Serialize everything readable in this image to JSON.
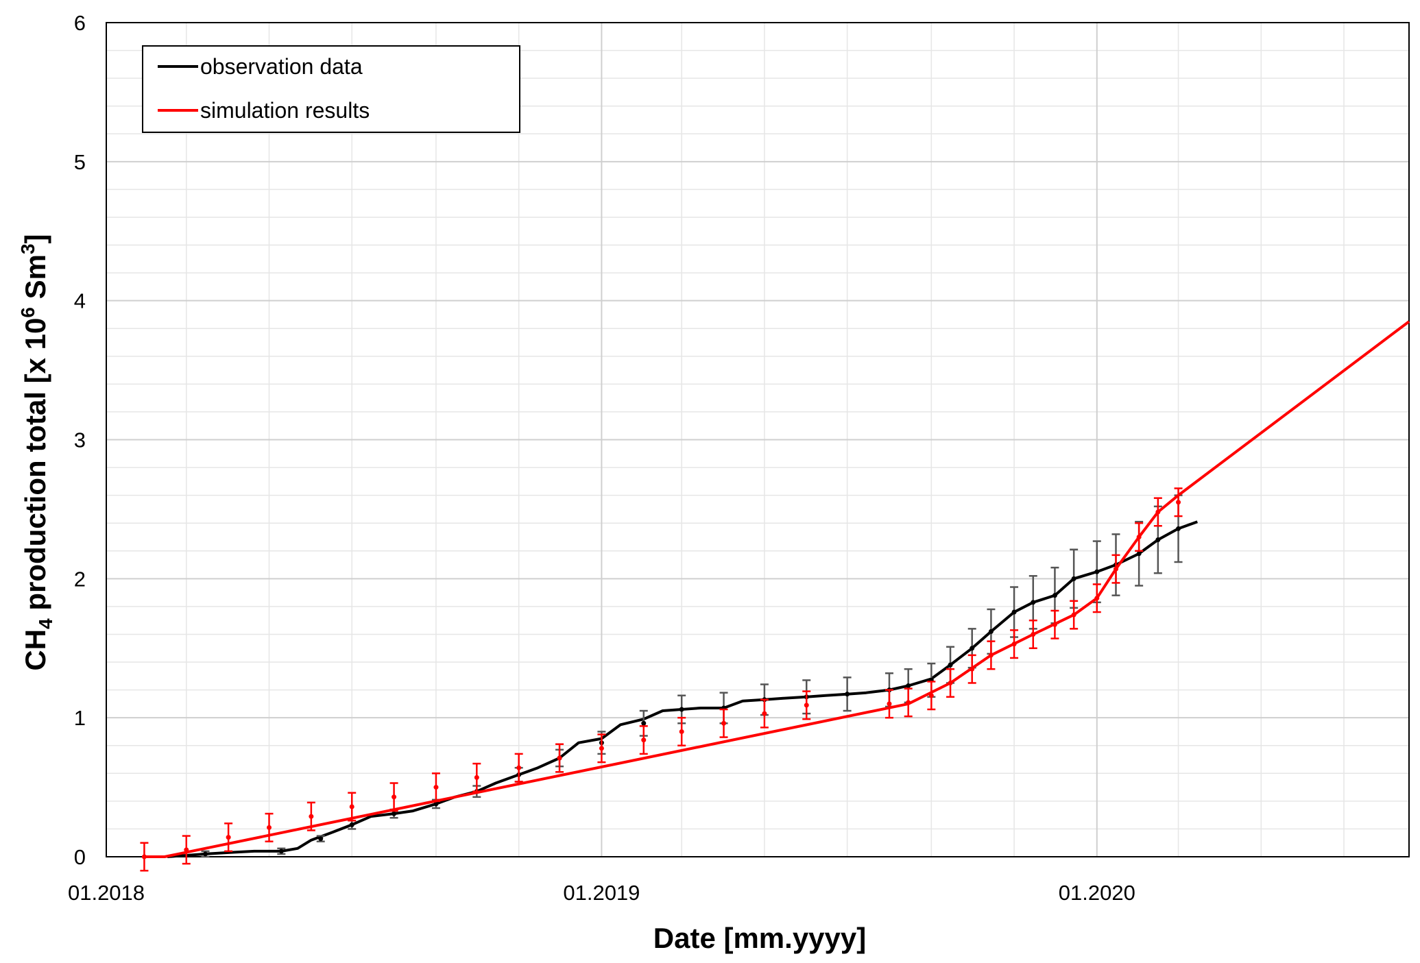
{
  "chart_data": {
    "type": "line",
    "xlabel": "Date [mm.yyyy]",
    "ylabel": {
      "pre": "CH",
      "sub": "4",
      "mid": " production total [x 10",
      "sup1": "6",
      "mid2": " Sm",
      "sup2": "3",
      "post": "]"
    },
    "xlim": [
      "2018-01-01",
      "2020-08-18"
    ],
    "ylim": [
      0,
      6
    ],
    "x_ticks": [
      {
        "date": "2018-01-01",
        "label": "01.2018"
      },
      {
        "date": "2019-01-01",
        "label": "01.2019"
      },
      {
        "date": "2020-01-01",
        "label": "01.2020"
      }
    ],
    "y_ticks": [
      0,
      1,
      2,
      3,
      4,
      5,
      6
    ],
    "grid": true,
    "legend_position": "top-left",
    "series": [
      {
        "name": "observation data",
        "color": "#000000",
        "error_color": "#555555",
        "points": [
          [
            "2018-02-15",
            0.0
          ],
          [
            "2018-03-01",
            0.01
          ],
          [
            "2018-03-15",
            0.02
          ],
          [
            "2018-04-01",
            0.03
          ],
          [
            "2018-04-20",
            0.04
          ],
          [
            "2018-05-10",
            0.04
          ],
          [
            "2018-05-22",
            0.06
          ],
          [
            "2018-06-01",
            0.12
          ],
          [
            "2018-06-15",
            0.17
          ],
          [
            "2018-07-01",
            0.23
          ],
          [
            "2018-07-15",
            0.29
          ],
          [
            "2018-08-01",
            0.31
          ],
          [
            "2018-08-15",
            0.33
          ],
          [
            "2018-09-01",
            0.38
          ],
          [
            "2018-09-15",
            0.43
          ],
          [
            "2018-10-01",
            0.47
          ],
          [
            "2018-10-15",
            0.53
          ],
          [
            "2018-11-01",
            0.59
          ],
          [
            "2018-11-15",
            0.64
          ],
          [
            "2018-12-01",
            0.71
          ],
          [
            "2018-12-15",
            0.82
          ],
          [
            "2019-01-01",
            0.85
          ],
          [
            "2019-01-15",
            0.95
          ],
          [
            "2019-02-01",
            0.99
          ],
          [
            "2019-02-15",
            1.05
          ],
          [
            "2019-03-01",
            1.06
          ],
          [
            "2019-03-15",
            1.07
          ],
          [
            "2019-04-01",
            1.07
          ],
          [
            "2019-04-15",
            1.12
          ],
          [
            "2019-05-01",
            1.13
          ],
          [
            "2019-05-15",
            1.14
          ],
          [
            "2019-06-01",
            1.15
          ],
          [
            "2019-06-15",
            1.16
          ],
          [
            "2019-07-01",
            1.17
          ],
          [
            "2019-07-15",
            1.18
          ],
          [
            "2019-08-01",
            1.2
          ],
          [
            "2019-08-15",
            1.23
          ],
          [
            "2019-09-01",
            1.28
          ],
          [
            "2019-09-15",
            1.38
          ],
          [
            "2019-10-01",
            1.5
          ],
          [
            "2019-10-15",
            1.62
          ],
          [
            "2019-11-01",
            1.76
          ],
          [
            "2019-11-15",
            1.83
          ],
          [
            "2019-12-01",
            1.88
          ],
          [
            "2019-12-15",
            2.0
          ],
          [
            "2020-01-01",
            2.05
          ],
          [
            "2020-01-15",
            2.1
          ],
          [
            "2020-02-01",
            2.18
          ],
          [
            "2020-02-15",
            2.28
          ],
          [
            "2020-03-01",
            2.36
          ],
          [
            "2020-03-15",
            2.41
          ]
        ],
        "error_bars": [
          [
            "2018-03-15",
            0.02,
            0.02
          ],
          [
            "2018-05-10",
            0.04,
            0.02
          ],
          [
            "2018-06-08",
            0.13,
            0.02
          ],
          [
            "2018-07-01",
            0.23,
            0.03
          ],
          [
            "2018-08-01",
            0.31,
            0.03
          ],
          [
            "2018-09-01",
            0.38,
            0.03
          ],
          [
            "2018-10-01",
            0.47,
            0.04
          ],
          [
            "2018-11-01",
            0.59,
            0.05
          ],
          [
            "2018-12-01",
            0.71,
            0.06
          ],
          [
            "2019-01-01",
            0.82,
            0.08
          ],
          [
            "2019-02-01",
            0.96,
            0.09
          ],
          [
            "2019-03-01",
            1.06,
            0.1
          ],
          [
            "2019-04-01",
            1.07,
            0.11
          ],
          [
            "2019-05-01",
            1.13,
            0.11
          ],
          [
            "2019-06-01",
            1.15,
            0.12
          ],
          [
            "2019-07-01",
            1.17,
            0.12
          ],
          [
            "2019-08-01",
            1.2,
            0.12
          ],
          [
            "2019-08-15",
            1.23,
            0.12
          ],
          [
            "2019-09-01",
            1.27,
            0.12
          ],
          [
            "2019-09-15",
            1.38,
            0.13
          ],
          [
            "2019-10-01",
            1.5,
            0.14
          ],
          [
            "2019-10-15",
            1.62,
            0.16
          ],
          [
            "2019-11-01",
            1.76,
            0.18
          ],
          [
            "2019-11-15",
            1.83,
            0.19
          ],
          [
            "2019-12-01",
            1.88,
            0.2
          ],
          [
            "2019-12-15",
            2.0,
            0.21
          ],
          [
            "2020-01-01",
            2.05,
            0.22
          ],
          [
            "2020-01-15",
            2.1,
            0.22
          ],
          [
            "2020-02-01",
            2.18,
            0.23
          ],
          [
            "2020-02-15",
            2.28,
            0.24
          ],
          [
            "2020-03-01",
            2.36,
            0.24
          ]
        ]
      },
      {
        "name": "simulation results",
        "color": "#ff0000",
        "error_color": "#ff0000",
        "points": [
          [
            "2018-01-29",
            0.0
          ],
          [
            "2018-02-13",
            0.0
          ],
          [
            "2019-08-15",
            1.1
          ],
          [
            "2019-09-15",
            1.25
          ],
          [
            "2019-10-15",
            1.45
          ],
          [
            "2019-11-15",
            1.6
          ],
          [
            "2019-12-15",
            1.74
          ],
          [
            "2020-01-01",
            1.86
          ],
          [
            "2020-01-15",
            2.07
          ],
          [
            "2020-02-01",
            2.3
          ],
          [
            "2020-02-15",
            2.48
          ],
          [
            "2020-03-01",
            2.6
          ],
          [
            "2020-08-18",
            3.85
          ]
        ],
        "error_bars": [
          [
            "2018-01-29",
            0.0,
            0.1
          ],
          [
            "2018-03-01",
            0.05,
            0.1
          ],
          [
            "2018-04-01",
            0.14,
            0.1
          ],
          [
            "2018-05-01",
            0.21,
            0.1
          ],
          [
            "2018-06-01",
            0.29,
            0.1
          ],
          [
            "2018-07-01",
            0.36,
            0.1
          ],
          [
            "2018-08-01",
            0.43,
            0.1
          ],
          [
            "2018-09-01",
            0.5,
            0.1
          ],
          [
            "2018-10-01",
            0.57,
            0.1
          ],
          [
            "2018-11-01",
            0.64,
            0.1
          ],
          [
            "2018-12-01",
            0.71,
            0.1
          ],
          [
            "2019-01-01",
            0.78,
            0.1
          ],
          [
            "2019-02-01",
            0.84,
            0.1
          ],
          [
            "2019-03-01",
            0.9,
            0.1
          ],
          [
            "2019-04-01",
            0.96,
            0.1
          ],
          [
            "2019-05-01",
            1.03,
            0.1
          ],
          [
            "2019-06-01",
            1.09,
            0.1
          ],
          [
            "2019-08-01",
            1.1,
            0.1
          ],
          [
            "2019-08-15",
            1.11,
            0.1
          ],
          [
            "2019-09-01",
            1.16,
            0.1
          ],
          [
            "2019-09-15",
            1.25,
            0.1
          ],
          [
            "2019-10-01",
            1.35,
            0.1
          ],
          [
            "2019-10-15",
            1.45,
            0.1
          ],
          [
            "2019-11-01",
            1.53,
            0.1
          ],
          [
            "2019-11-15",
            1.6,
            0.1
          ],
          [
            "2019-12-01",
            1.67,
            0.1
          ],
          [
            "2019-12-15",
            1.74,
            0.1
          ],
          [
            "2020-01-01",
            1.86,
            0.1
          ],
          [
            "2020-01-15",
            2.07,
            0.1
          ],
          [
            "2020-02-01",
            2.3,
            0.1
          ],
          [
            "2020-02-15",
            2.48,
            0.1
          ],
          [
            "2020-03-01",
            2.55,
            0.1
          ]
        ]
      }
    ]
  }
}
